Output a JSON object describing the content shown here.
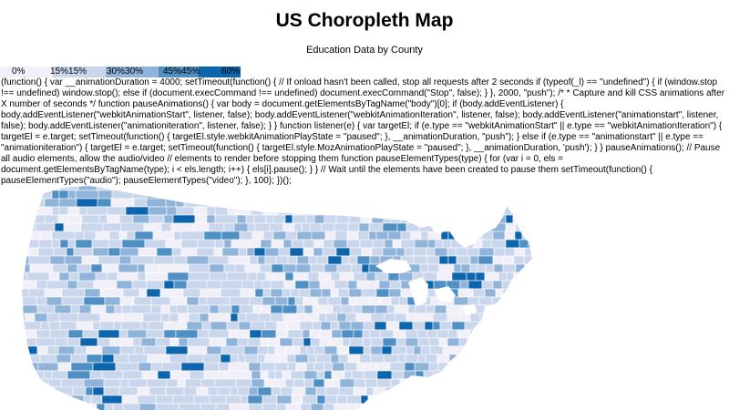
{
  "header": {
    "title": "US Choropleth Map",
    "subtitle": "Education Data by County"
  },
  "legend": {
    "items": [
      {
        "label": "0%",
        "color": "#f1f0f8"
      },
      {
        "label": "15%15%",
        "color": "#c9d6ec"
      },
      {
        "label": "30%30%",
        "color": "#8fb3d9"
      },
      {
        "label": "45%45%",
        "color": "#4e8fc4"
      },
      {
        "label": "60%",
        "color": "#0d66ad"
      }
    ]
  },
  "script_text": "(function() { var __animationDuration = 4000; setTimeout(function() { // If onload hasn't been called, stop all requests after 2 seconds if (typeof(_l) == \"undefined\") { if (window.stop !== undefined) window.stop(); else if (document.execCommand !== undefined) document.execCommand(\"Stop\", false); } }, 2000, \"push\"); /* * Capture and kill CSS animations after X number of seconds */ function pauseAnimations() { var body = document.getElementsByTagName(\"body\")[0]; if (body.addEventListener) { body.addEventListener(\"webkitAnimationStart\", listener, false); body.addEventListener(\"webkitAnimationIteration\", listener, false); body.addEventListener(\"animationstart\", listener, false); body.addEventListener(\"animationiteration\", listener, false); } } function listener(e) { var targetEl; if (e.type == \"webkitAnimationStart\" || e.type == \"webkitAnimationIteration\") { targetEl = e.target; setTimeout(function() { targetEl.style.webkitAnimationPlayState = \"paused\"; }, __animationDuration, \"push\"); } else if (e.type == \"animationstart\" || e.type == \"animationiteration\") { targetEl = e.target; setTimeout(function() { targetEl.style.MozAnimationPlayState = \"paused\"; }, __animationDuration, 'push'); } } pauseAnimations(); // Pause all audio elements, allow the audio/video // elements to render before stopping them function pauseElementTypes(type) { for (var i = 0, els = document.getElementsByTagName(type); i < els.length; i++) { els[i].pause(); } } // Wait until the elements have been created to pause them setTimeout(function() { pauseElementTypes(\"audio\"); pauseElementTypes(\"video\"); }, 100); })();",
  "map": {
    "fill_colors": [
      "#f1f0f8",
      "#c9d6ec",
      "#8fb3d9",
      "#4e8fc4",
      "#0d66ad"
    ],
    "border_color": "#ffffff"
  }
}
